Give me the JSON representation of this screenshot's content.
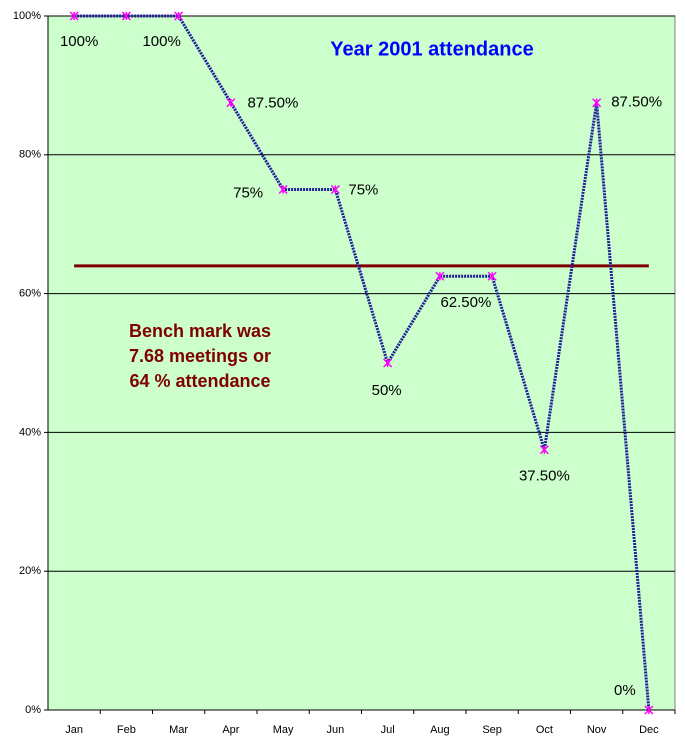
{
  "chart_data": {
    "type": "line",
    "title": "Year 2001 attendance",
    "categories": [
      "Jan",
      "Feb",
      "Mar",
      "Apr",
      "May",
      "Jun",
      "Jul",
      "Aug",
      "Sep",
      "Oct",
      "Nov",
      "Dec"
    ],
    "values": [
      100,
      100,
      100,
      87.5,
      75,
      75,
      50,
      62.5,
      62.5,
      37.5,
      87.5,
      0
    ],
    "value_labels": [
      "100%",
      null,
      "100%",
      "87.50%",
      "75%",
      "75%",
      "50%",
      "62.50%",
      null,
      "37.50%",
      "87.50%",
      "0%"
    ],
    "color": "#1f1f9a",
    "marker_color": "#ff00ff",
    "benchmark": 64,
    "benchmark_color": "#800000",
    "annotation": [
      "Bench mark was",
      "7.68 meetings or",
      "64 % attendance"
    ],
    "ylim": [
      0,
      100
    ],
    "yticks": [
      {
        "value": 0,
        "label": "0%"
      },
      {
        "value": 20,
        "label": "20%"
      },
      {
        "value": 40,
        "label": "40%"
      },
      {
        "value": 60,
        "label": "60%"
      },
      {
        "value": 80,
        "label": "80%"
      },
      {
        "value": 100,
        "label": "100%"
      }
    ],
    "grid": true
  }
}
